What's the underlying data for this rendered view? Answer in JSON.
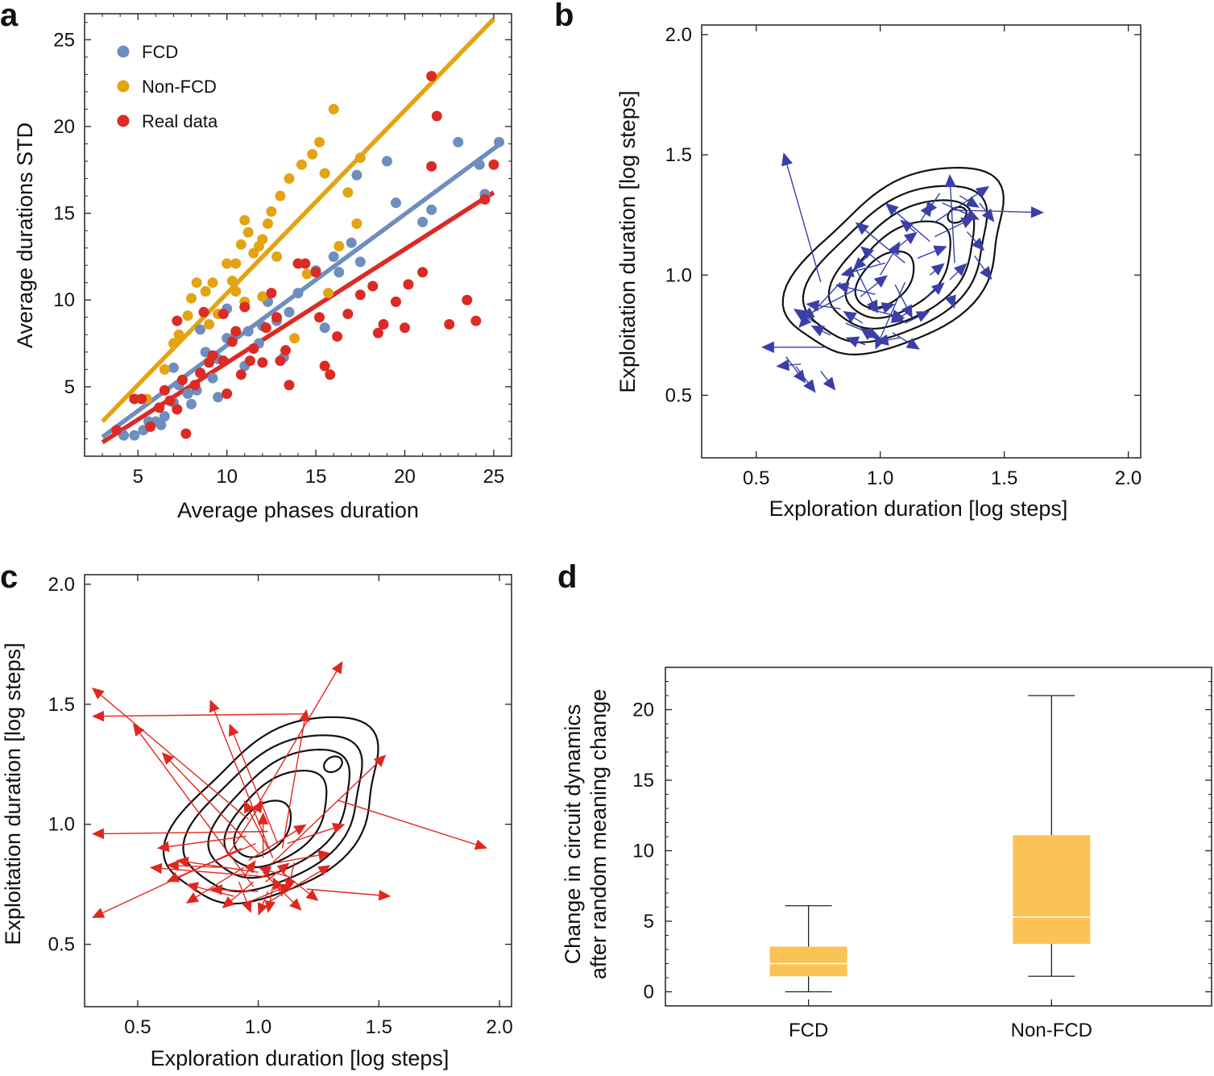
{
  "chart_data": [
    {
      "panel": "a",
      "type": "scatter",
      "xlabel": "Average phases duration",
      "ylabel": "Average durations STD",
      "xlim": [
        2,
        26
      ],
      "ylim": [
        1,
        26.5
      ],
      "xticks": [
        5,
        10,
        15,
        20,
        25
      ],
      "yticks": [
        5,
        10,
        15,
        20,
        25
      ],
      "legend_position": "top-left",
      "series": [
        {
          "name": "FCD",
          "color": "#6d8ebf",
          "fit": [
            [
              3,
              2.1
            ],
            [
              25.5,
              19.1
            ]
          ],
          "points": [
            [
              4.2,
              2.2
            ],
            [
              4.8,
              2.2
            ],
            [
              5.3,
              2.5
            ],
            [
              5.6,
              3
            ],
            [
              6,
              3
            ],
            [
              6.3,
              2.8
            ],
            [
              6.5,
              3.3
            ],
            [
              7,
              4.1
            ],
            [
              7.3,
              5.1
            ],
            [
              7.8,
              4.6
            ],
            [
              8,
              4
            ],
            [
              8.3,
              4.8
            ],
            [
              8.8,
              7
            ],
            [
              9.2,
              5.5
            ],
            [
              9.5,
              6.6
            ],
            [
              10,
              7.8
            ],
            [
              10,
              9.5
            ],
            [
              10.5,
              8
            ],
            [
              11,
              6.2
            ],
            [
              11.2,
              8.2
            ],
            [
              11.8,
              7.5
            ],
            [
              12.3,
              9.9
            ],
            [
              12.8,
              8.8
            ],
            [
              13.2,
              6.7
            ],
            [
              13.5,
              9.3
            ],
            [
              14,
              10.4
            ],
            [
              15,
              11.7
            ],
            [
              15.5,
              8.4
            ],
            [
              16,
              12.5
            ],
            [
              16.3,
              11.6
            ],
            [
              17,
              13.3
            ],
            [
              17.3,
              17.2
            ],
            [
              17.5,
              12.2
            ],
            [
              19,
              18
            ],
            [
              19.5,
              15.6
            ],
            [
              21,
              14.5
            ],
            [
              21.5,
              15.2
            ],
            [
              23,
              19.1
            ],
            [
              24.2,
              17.8
            ],
            [
              24.5,
              16.1
            ],
            [
              25.3,
              19.1
            ],
            [
              7,
              6.1
            ],
            [
              8.5,
              8.3
            ],
            [
              9.5,
              4.4
            ],
            [
              12,
              8.5
            ]
          ]
        },
        {
          "name": "Non-FCD",
          "color": "#e3a413",
          "fit": [
            [
              3,
              3
            ],
            [
              25,
              26.2
            ]
          ],
          "points": [
            [
              5.5,
              4.3
            ],
            [
              6.5,
              6
            ],
            [
              7,
              7.5
            ],
            [
              7.3,
              8
            ],
            [
              7.8,
              9.1
            ],
            [
              8,
              10.1
            ],
            [
              8.3,
              11
            ],
            [
              8.8,
              10.5
            ],
            [
              9.2,
              11
            ],
            [
              9.5,
              9.2
            ],
            [
              10,
              12.1
            ],
            [
              10.3,
              11.1
            ],
            [
              10.5,
              12.1
            ],
            [
              10.8,
              13.2
            ],
            [
              11,
              14.6
            ],
            [
              11.2,
              13.9
            ],
            [
              11.5,
              12.7
            ],
            [
              11.8,
              13.1
            ],
            [
              12,
              13.5
            ],
            [
              12.3,
              14.4
            ],
            [
              12.5,
              15.1
            ],
            [
              12.8,
              12.5
            ],
            [
              13,
              16
            ],
            [
              13.5,
              17
            ],
            [
              14.2,
              17.8
            ],
            [
              14.8,
              18.4
            ],
            [
              15.2,
              19.1
            ],
            [
              15.5,
              17.3
            ],
            [
              16,
              21
            ],
            [
              16.3,
              13.1
            ],
            [
              16.8,
              16.2
            ],
            [
              17.5,
              18.2
            ],
            [
              17.3,
              14.4
            ],
            [
              14.5,
              11.5
            ],
            [
              13.8,
              7.8
            ],
            [
              12,
              10.2
            ],
            [
              11,
              9.9
            ],
            [
              9,
              8.6
            ],
            [
              10.5,
              10.5
            ],
            [
              15.7,
              10.4
            ]
          ]
        },
        {
          "name": "Real data",
          "color": "#dc2a24",
          "fit": [
            [
              3,
              1.8
            ],
            [
              25,
              16.2
            ]
          ],
          "points": [
            [
              3.8,
              2.5
            ],
            [
              4.8,
              4.3
            ],
            [
              5.2,
              4.3
            ],
            [
              5.7,
              2.7
            ],
            [
              6.2,
              3.8
            ],
            [
              6.5,
              4.8
            ],
            [
              6.8,
              4.2
            ],
            [
              7.2,
              3.7
            ],
            [
              7.5,
              5.4
            ],
            [
              7.7,
              2.3
            ],
            [
              8.2,
              5.1
            ],
            [
              8.5,
              5.8
            ],
            [
              9,
              6.4
            ],
            [
              9.2,
              6.8
            ],
            [
              9.8,
              6.5
            ],
            [
              10,
              4.6
            ],
            [
              10.3,
              7.6
            ],
            [
              10.5,
              8.2
            ],
            [
              10.8,
              5.7
            ],
            [
              11,
              9.6
            ],
            [
              11.3,
              6.5
            ],
            [
              11.5,
              7.2
            ],
            [
              12,
              6.4
            ],
            [
              12.5,
              10.4
            ],
            [
              12.8,
              9
            ],
            [
              13,
              6.5
            ],
            [
              13.3,
              7.1
            ],
            [
              13.5,
              5.1
            ],
            [
              14,
              12.1
            ],
            [
              14.4,
              12.1
            ],
            [
              15,
              11.6
            ],
            [
              15.2,
              9
            ],
            [
              15.5,
              6.2
            ],
            [
              15.8,
              5.7
            ],
            [
              16.2,
              7.9
            ],
            [
              16.8,
              9.2
            ],
            [
              17.5,
              10.3
            ],
            [
              18.2,
              10.8
            ],
            [
              18.5,
              8.1
            ],
            [
              18.8,
              8.6
            ],
            [
              19.5,
              9.9
            ],
            [
              20,
              8.4
            ],
            [
              20.2,
              10.9
            ],
            [
              21,
              11.6
            ],
            [
              21.5,
              17.7
            ],
            [
              21.8,
              20.6
            ],
            [
              22.5,
              8.6
            ],
            [
              21.5,
              22.9
            ],
            [
              23.5,
              10
            ],
            [
              24,
              8.8
            ],
            [
              24.5,
              15.8
            ],
            [
              25,
              17.8
            ],
            [
              7.2,
              8.8
            ],
            [
              9.8,
              9.2
            ],
            [
              12.2,
              8.4
            ],
            [
              8.7,
              9.3
            ]
          ]
        }
      ]
    },
    {
      "panel": "b",
      "type": "contour",
      "xlabel": "Exploration duration [log steps]",
      "ylabel": "Exploitation duration [log steps]",
      "xlim": [
        0.28,
        2.05
      ],
      "ylim": [
        0.24,
        2.04
      ],
      "xticks": [
        0.5,
        1.0,
        1.5,
        2.0
      ],
      "yticks": [
        0.5,
        1.0,
        1.5,
        2.0
      ],
      "contour_levels": 6,
      "arrow_color": "#3a3fa8",
      "arrows": [
        [
          0.76,
          0.97,
          0.61,
          1.51
        ],
        [
          0.84,
          0.97,
          0.67,
          0.78
        ],
        [
          0.9,
          0.94,
          0.68,
          0.82
        ],
        [
          1.02,
          1.05,
          0.84,
          1.0
        ],
        [
          1.1,
          1.05,
          0.9,
          1.22
        ],
        [
          1.2,
          1.14,
          1.02,
          1.3
        ],
        [
          1.3,
          1.05,
          1.28,
          1.42
        ],
        [
          1.22,
          1.22,
          1.44,
          1.37
        ],
        [
          1.3,
          1.27,
          1.66,
          1.26
        ],
        [
          1.1,
          0.97,
          0.98,
          0.69
        ],
        [
          0.78,
          0.7,
          0.52,
          0.7
        ],
        [
          0.68,
          0.63,
          0.58,
          0.62
        ],
        [
          0.62,
          0.66,
          0.7,
          0.55
        ],
        [
          0.66,
          0.62,
          0.74,
          0.51
        ],
        [
          0.76,
          0.6,
          0.82,
          0.52
        ],
        [
          0.9,
          1.03,
          0.99,
          0.84
        ],
        [
          0.84,
          0.86,
          0.7,
          0.88
        ],
        [
          0.86,
          0.8,
          1.0,
          0.74
        ],
        [
          0.95,
          0.86,
          1.1,
          0.82
        ],
        [
          0.92,
          0.91,
          1.03,
          1.0
        ],
        [
          1.05,
          1.1,
          1.15,
          1.18
        ],
        [
          1.0,
          1.0,
          1.08,
          1.14
        ],
        [
          1.15,
          1.07,
          1.27,
          1.12
        ],
        [
          1.22,
          1.16,
          1.38,
          1.24
        ],
        [
          1.25,
          1.3,
          1.4,
          1.23
        ],
        [
          1.35,
          1.18,
          1.42,
          1.1
        ],
        [
          1.38,
          1.08,
          1.45,
          0.98
        ],
        [
          1.28,
          0.98,
          1.35,
          1.05
        ],
        [
          1.18,
          0.9,
          1.26,
          0.97
        ],
        [
          1.05,
          0.76,
          1.16,
          0.69
        ],
        [
          1.0,
          0.72,
          0.92,
          0.78
        ],
        [
          0.94,
          0.71,
          0.86,
          0.74
        ],
        [
          1.1,
          0.8,
          1.2,
          0.85
        ],
        [
          0.98,
          0.92,
          0.82,
          0.96
        ],
        [
          1.06,
          0.96,
          1.13,
          0.82
        ],
        [
          1.12,
          0.85,
          1.04,
          0.8
        ],
        [
          1.28,
          0.92,
          1.3,
          0.86
        ],
        [
          1.24,
          1.34,
          1.18,
          1.25
        ],
        [
          1.32,
          1.33,
          1.4,
          1.28
        ],
        [
          1.4,
          1.3,
          1.46,
          1.22
        ],
        [
          0.95,
          1.08,
          0.89,
          1.02
        ],
        [
          1.16,
          1.22,
          1.21,
          1.3
        ],
        [
          1.0,
          1.05,
          0.92,
          1.12
        ],
        [
          1.08,
          0.74,
          0.98,
          0.72
        ],
        [
          0.93,
          0.8,
          0.85,
          0.85
        ],
        [
          0.74,
          0.8,
          0.65,
          0.86
        ],
        [
          0.8,
          0.75,
          0.72,
          0.79
        ],
        [
          1.2,
          1.0,
          1.26,
          1.05
        ],
        [
          1.14,
          1.18,
          1.08,
          1.23
        ],
        [
          0.97,
          0.85,
          1.06,
          0.88
        ]
      ]
    },
    {
      "panel": "c",
      "type": "contour",
      "xlabel": "Exploration duration [log steps]",
      "ylabel": "Exploitation duration [log steps]",
      "xlim": [
        0.28,
        2.05
      ],
      "ylim": [
        0.24,
        2.04
      ],
      "xticks": [
        0.5,
        1.0,
        1.5,
        2.0
      ],
      "yticks": [
        0.5,
        1.0,
        1.5,
        2.0
      ],
      "contour_levels": 6,
      "arrow_color": "#e0271f",
      "arrows": [
        [
          1.2,
          1.46,
          0.31,
          1.45
        ],
        [
          0.96,
          1.02,
          0.31,
          1.57
        ],
        [
          1.04,
          0.97,
          0.31,
          0.96
        ],
        [
          0.93,
          0.9,
          0.31,
          0.61
        ],
        [
          1.33,
          1.1,
          1.95,
          0.9
        ],
        [
          0.98,
          1.05,
          1.35,
          1.68
        ],
        [
          1.06,
          0.84,
          1.53,
          1.29
        ],
        [
          1.2,
          0.73,
          1.55,
          0.7
        ],
        [
          1.0,
          0.88,
          0.6,
          1.3
        ],
        [
          1.05,
          0.78,
          0.55,
          0.82
        ],
        [
          0.98,
          0.74,
          0.48,
          1.42
        ],
        [
          1.06,
          0.86,
          0.8,
          1.52
        ],
        [
          1.1,
          0.9,
          1.2,
          1.48
        ],
        [
          0.94,
          0.82,
          0.7,
          0.67
        ],
        [
          1.1,
          0.8,
          1.25,
          0.68
        ],
        [
          1.04,
          0.72,
          1.0,
          0.62
        ],
        [
          0.98,
          0.76,
          0.85,
          0.65
        ],
        [
          1.08,
          0.84,
          1.3,
          0.88
        ],
        [
          0.99,
          0.92,
          0.62,
          0.76
        ],
        [
          1.0,
          0.8,
          0.66,
          0.85
        ],
        [
          1.05,
          0.68,
          1.3,
          0.83
        ],
        [
          0.96,
          0.85,
          1.2,
          1.0
        ],
        [
          1.12,
          0.92,
          1.36,
          1.0
        ],
        [
          1.0,
          0.72,
          0.8,
          0.73
        ],
        [
          0.92,
          0.76,
          0.97,
          0.63
        ],
        [
          1.06,
          0.74,
          1.04,
          0.63
        ],
        [
          1.02,
          0.8,
          1.18,
          0.64
        ],
        [
          0.95,
          0.95,
          0.58,
          0.9
        ],
        [
          0.9,
          0.7,
          0.7,
          0.75
        ],
        [
          1.13,
          0.78,
          1.0,
          0.82
        ],
        [
          0.88,
          0.88,
          1.02,
          1.1
        ],
        [
          1.08,
          0.92,
          0.88,
          1.42
        ],
        [
          0.97,
          0.68,
          1.14,
          0.75
        ],
        [
          1.02,
          0.86,
          1.02,
          1.05
        ],
        [
          1.15,
          0.84,
          1.12,
          0.72
        ],
        [
          0.94,
          0.78,
          0.99,
          0.85
        ],
        [
          1.1,
          0.7,
          1.06,
          0.78
        ],
        [
          1.04,
          0.9,
          0.94,
          1.1
        ],
        [
          0.86,
          0.82,
          0.62,
          0.83
        ],
        [
          1.03,
          0.76,
          1.13,
          0.84
        ]
      ]
    },
    {
      "panel": "d",
      "type": "box",
      "ylabel_line1": "Change in circuit dynamics",
      "ylabel_line2": "after random meaning change",
      "ylim": [
        -1,
        23
      ],
      "yticks": [
        0,
        5,
        10,
        15,
        20
      ],
      "categories": [
        "FCD",
        "Non-FCD"
      ],
      "box_color": "#fbc255",
      "boxes": [
        {
          "name": "FCD",
          "min": 0,
          "q1": 1.1,
          "median": 2.0,
          "q3": 3.2,
          "max": 6.1
        },
        {
          "name": "Non-FCD",
          "min": 1.1,
          "q1": 3.4,
          "median": 5.3,
          "q3": 11.1,
          "max": 21.0
        }
      ]
    }
  ]
}
